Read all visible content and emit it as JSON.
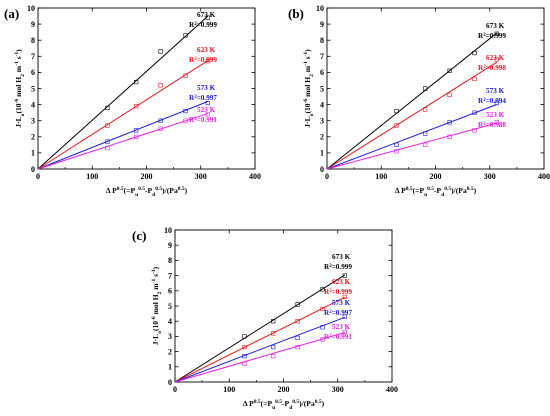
{
  "chart_data": [
    {
      "type": "scatter",
      "panel_label": "(a)",
      "xlabel_parts": [
        "Δ P",
        "0.5",
        "(=P",
        "u",
        "0.5",
        "-P",
        "d",
        "0.5",
        ")/(Pa",
        "0.5",
        ")"
      ],
      "ylabel_parts": [
        "J·L",
        "o",
        "(10",
        "-6",
        " mol H",
        "2",
        " m",
        "-1",
        " s",
        "-1",
        ")"
      ],
      "xlim": [
        0,
        400
      ],
      "ylim": [
        0,
        10
      ],
      "xticks": [
        0,
        100,
        200,
        300,
        400
      ],
      "yticks": [
        0,
        1,
        2,
        3,
        4,
        5,
        6,
        7,
        8,
        9,
        10
      ],
      "grid": false,
      "series": [
        {
          "name": "673 K",
          "r2": "R2=0.999",
          "color": "#000000",
          "x": [
            128,
            181,
            226,
            272,
            313
          ],
          "y": [
            3.8,
            5.4,
            7.3,
            8.3,
            9.4
          ],
          "fit": [
            0,
            0.0303
          ]
        },
        {
          "name": "623 K",
          "r2": "R2=0.999",
          "color": "#e8141c",
          "x": [
            128,
            181,
            226,
            272,
            313
          ],
          "y": [
            2.7,
            3.9,
            5.2,
            5.8,
            6.7
          ],
          "fit": [
            0,
            0.0215
          ]
        },
        {
          "name": "573 K",
          "r2": "R2=0.997",
          "color": "#1a1adc",
          "x": [
            128,
            181,
            226,
            272,
            313
          ],
          "y": [
            1.7,
            2.4,
            3.0,
            3.6,
            4.1
          ],
          "fit": [
            0,
            0.0134
          ]
        },
        {
          "name": "523 K",
          "r2": "R2=0.991",
          "color": "#e81ce8",
          "x": [
            128,
            181,
            226,
            272,
            313
          ],
          "y": [
            1.3,
            2.0,
            2.5,
            3.0,
            3.4
          ],
          "fit": [
            0,
            0.011
          ]
        }
      ]
    },
    {
      "type": "scatter",
      "panel_label": "(b)",
      "xlabel_parts": [
        "Δ P",
        "0.5",
        "(=P",
        "u",
        "0.5",
        "-P",
        "d",
        "0.5",
        ")/(Pa",
        "0.5",
        ")"
      ],
      "ylabel_parts": [
        "J·L",
        "o",
        "(10",
        "-6",
        " mol H",
        "2",
        " m",
        "-1",
        " s",
        "-1",
        ")"
      ],
      "xlim": [
        0,
        400
      ],
      "ylim": [
        0,
        10
      ],
      "xticks": [
        0,
        100,
        200,
        300,
        400
      ],
      "yticks": [
        0,
        1,
        2,
        3,
        4,
        5,
        6,
        7,
        8,
        9,
        10
      ],
      "grid": false,
      "series": [
        {
          "name": "673 K",
          "r2": "R2=0.999",
          "color": "#000000",
          "x": [
            128,
            181,
            226,
            272,
            313
          ],
          "y": [
            3.6,
            5.0,
            6.1,
            7.2,
            8.4
          ],
          "fit": [
            0,
            0.027
          ]
        },
        {
          "name": "623 K",
          "r2": "R2=0.998",
          "color": "#e8141c",
          "x": [
            128,
            181,
            226,
            272,
            313
          ],
          "y": [
            2.7,
            3.7,
            4.6,
            5.6,
            6.8
          ],
          "fit": [
            0,
            0.0212
          ]
        },
        {
          "name": "573 K",
          "r2": "R2=0.994",
          "color": "#1a1adc",
          "x": [
            128,
            181,
            226,
            272,
            313
          ],
          "y": [
            1.5,
            2.2,
            2.9,
            3.5,
            4.1
          ],
          "fit": [
            0,
            0.0128
          ]
        },
        {
          "name": "523 K",
          "r2": "R2=0.988",
          "color": "#e81ce8",
          "x": [
            128,
            181,
            226,
            272,
            313
          ],
          "y": [
            1.1,
            1.5,
            2.0,
            2.4,
            2.9
          ],
          "fit": [
            0,
            0.0091
          ]
        }
      ]
    },
    {
      "type": "scatter",
      "panel_label": "(c)",
      "xlabel_parts": [
        "Δ P",
        "0.5",
        "(=P",
        "u",
        "0.5",
        "-P",
        "d",
        "0.5",
        ")/(Pa",
        "0.5",
        ")"
      ],
      "ylabel_parts": [
        "J·L",
        "o",
        "(10",
        "-6",
        " mol H",
        "2",
        " m",
        "-1",
        " s",
        "-1",
        ")"
      ],
      "xlim": [
        0,
        400
      ],
      "ylim": [
        0,
        10
      ],
      "xticks": [
        0,
        100,
        200,
        300,
        400
      ],
      "yticks": [
        0,
        1,
        2,
        3,
        4,
        5,
        6,
        7,
        8,
        9,
        10
      ],
      "grid": false,
      "series": [
        {
          "name": "673 K",
          "r2": "R2=0.999",
          "color": "#000000",
          "x": [
            128,
            181,
            226,
            272,
            313
          ],
          "y": [
            3.0,
            4.0,
            5.1,
            6.1,
            7.0
          ],
          "fit": [
            0,
            0.0225
          ]
        },
        {
          "name": "623 K",
          "r2": "R2=0.999",
          "color": "#e8141c",
          "x": [
            128,
            181,
            226,
            272,
            313
          ],
          "y": [
            2.3,
            3.2,
            4.0,
            4.8,
            5.6
          ],
          "fit": [
            0,
            0.0178
          ]
        },
        {
          "name": "573 K",
          "r2": "R2=0.997",
          "color": "#1a1adc",
          "x": [
            128,
            181,
            226,
            272,
            313
          ],
          "y": [
            1.7,
            2.3,
            2.9,
            3.6,
            4.3
          ],
          "fit": [
            0,
            0.0136
          ]
        },
        {
          "name": "523 K",
          "r2": "R2=0.991",
          "color": "#e81ce8",
          "x": [
            128,
            181,
            226,
            272,
            313
          ],
          "y": [
            1.2,
            1.7,
            2.3,
            2.8,
            3.3
          ],
          "fit": [
            0,
            0.0104
          ]
        }
      ]
    }
  ]
}
